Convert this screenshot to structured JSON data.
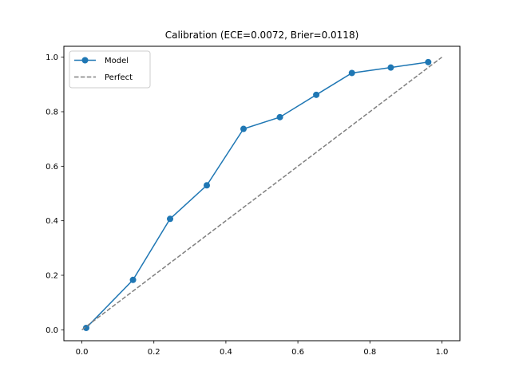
{
  "chart_data": {
    "type": "line",
    "title": "Calibration (ECE=0.0072, Brier=0.0118)",
    "xlabel": "",
    "ylabel": "",
    "xlim": [
      -0.05,
      1.05
    ],
    "ylim": [
      -0.04,
      1.04
    ],
    "x_ticks": [
      0.0,
      0.2,
      0.4,
      0.6,
      0.8,
      1.0
    ],
    "y_ticks": [
      0.0,
      0.2,
      0.4,
      0.6,
      0.8,
      1.0
    ],
    "x_tick_labels": [
      "0.0",
      "0.2",
      "0.4",
      "0.6",
      "0.8",
      "1.0"
    ],
    "y_tick_labels": [
      "0.0",
      "0.2",
      "0.4",
      "0.6",
      "0.8",
      "1.0"
    ],
    "grid": false,
    "legend_position": "top-left",
    "series": [
      {
        "name": "Model",
        "color": "#1f77b4",
        "style": "solid",
        "marker": "circle",
        "x": [
          0.012,
          0.142,
          0.245,
          0.347,
          0.449,
          0.55,
          0.651,
          0.75,
          0.858,
          0.962
        ],
        "y": [
          0.007,
          0.183,
          0.407,
          0.53,
          0.737,
          0.78,
          0.862,
          0.942,
          0.962,
          0.982
        ]
      },
      {
        "name": "Perfect",
        "color": "#7f7f7f",
        "style": "dashed",
        "marker": "none",
        "x": [
          0.0,
          1.0
        ],
        "y": [
          0.0,
          1.0
        ]
      }
    ]
  }
}
